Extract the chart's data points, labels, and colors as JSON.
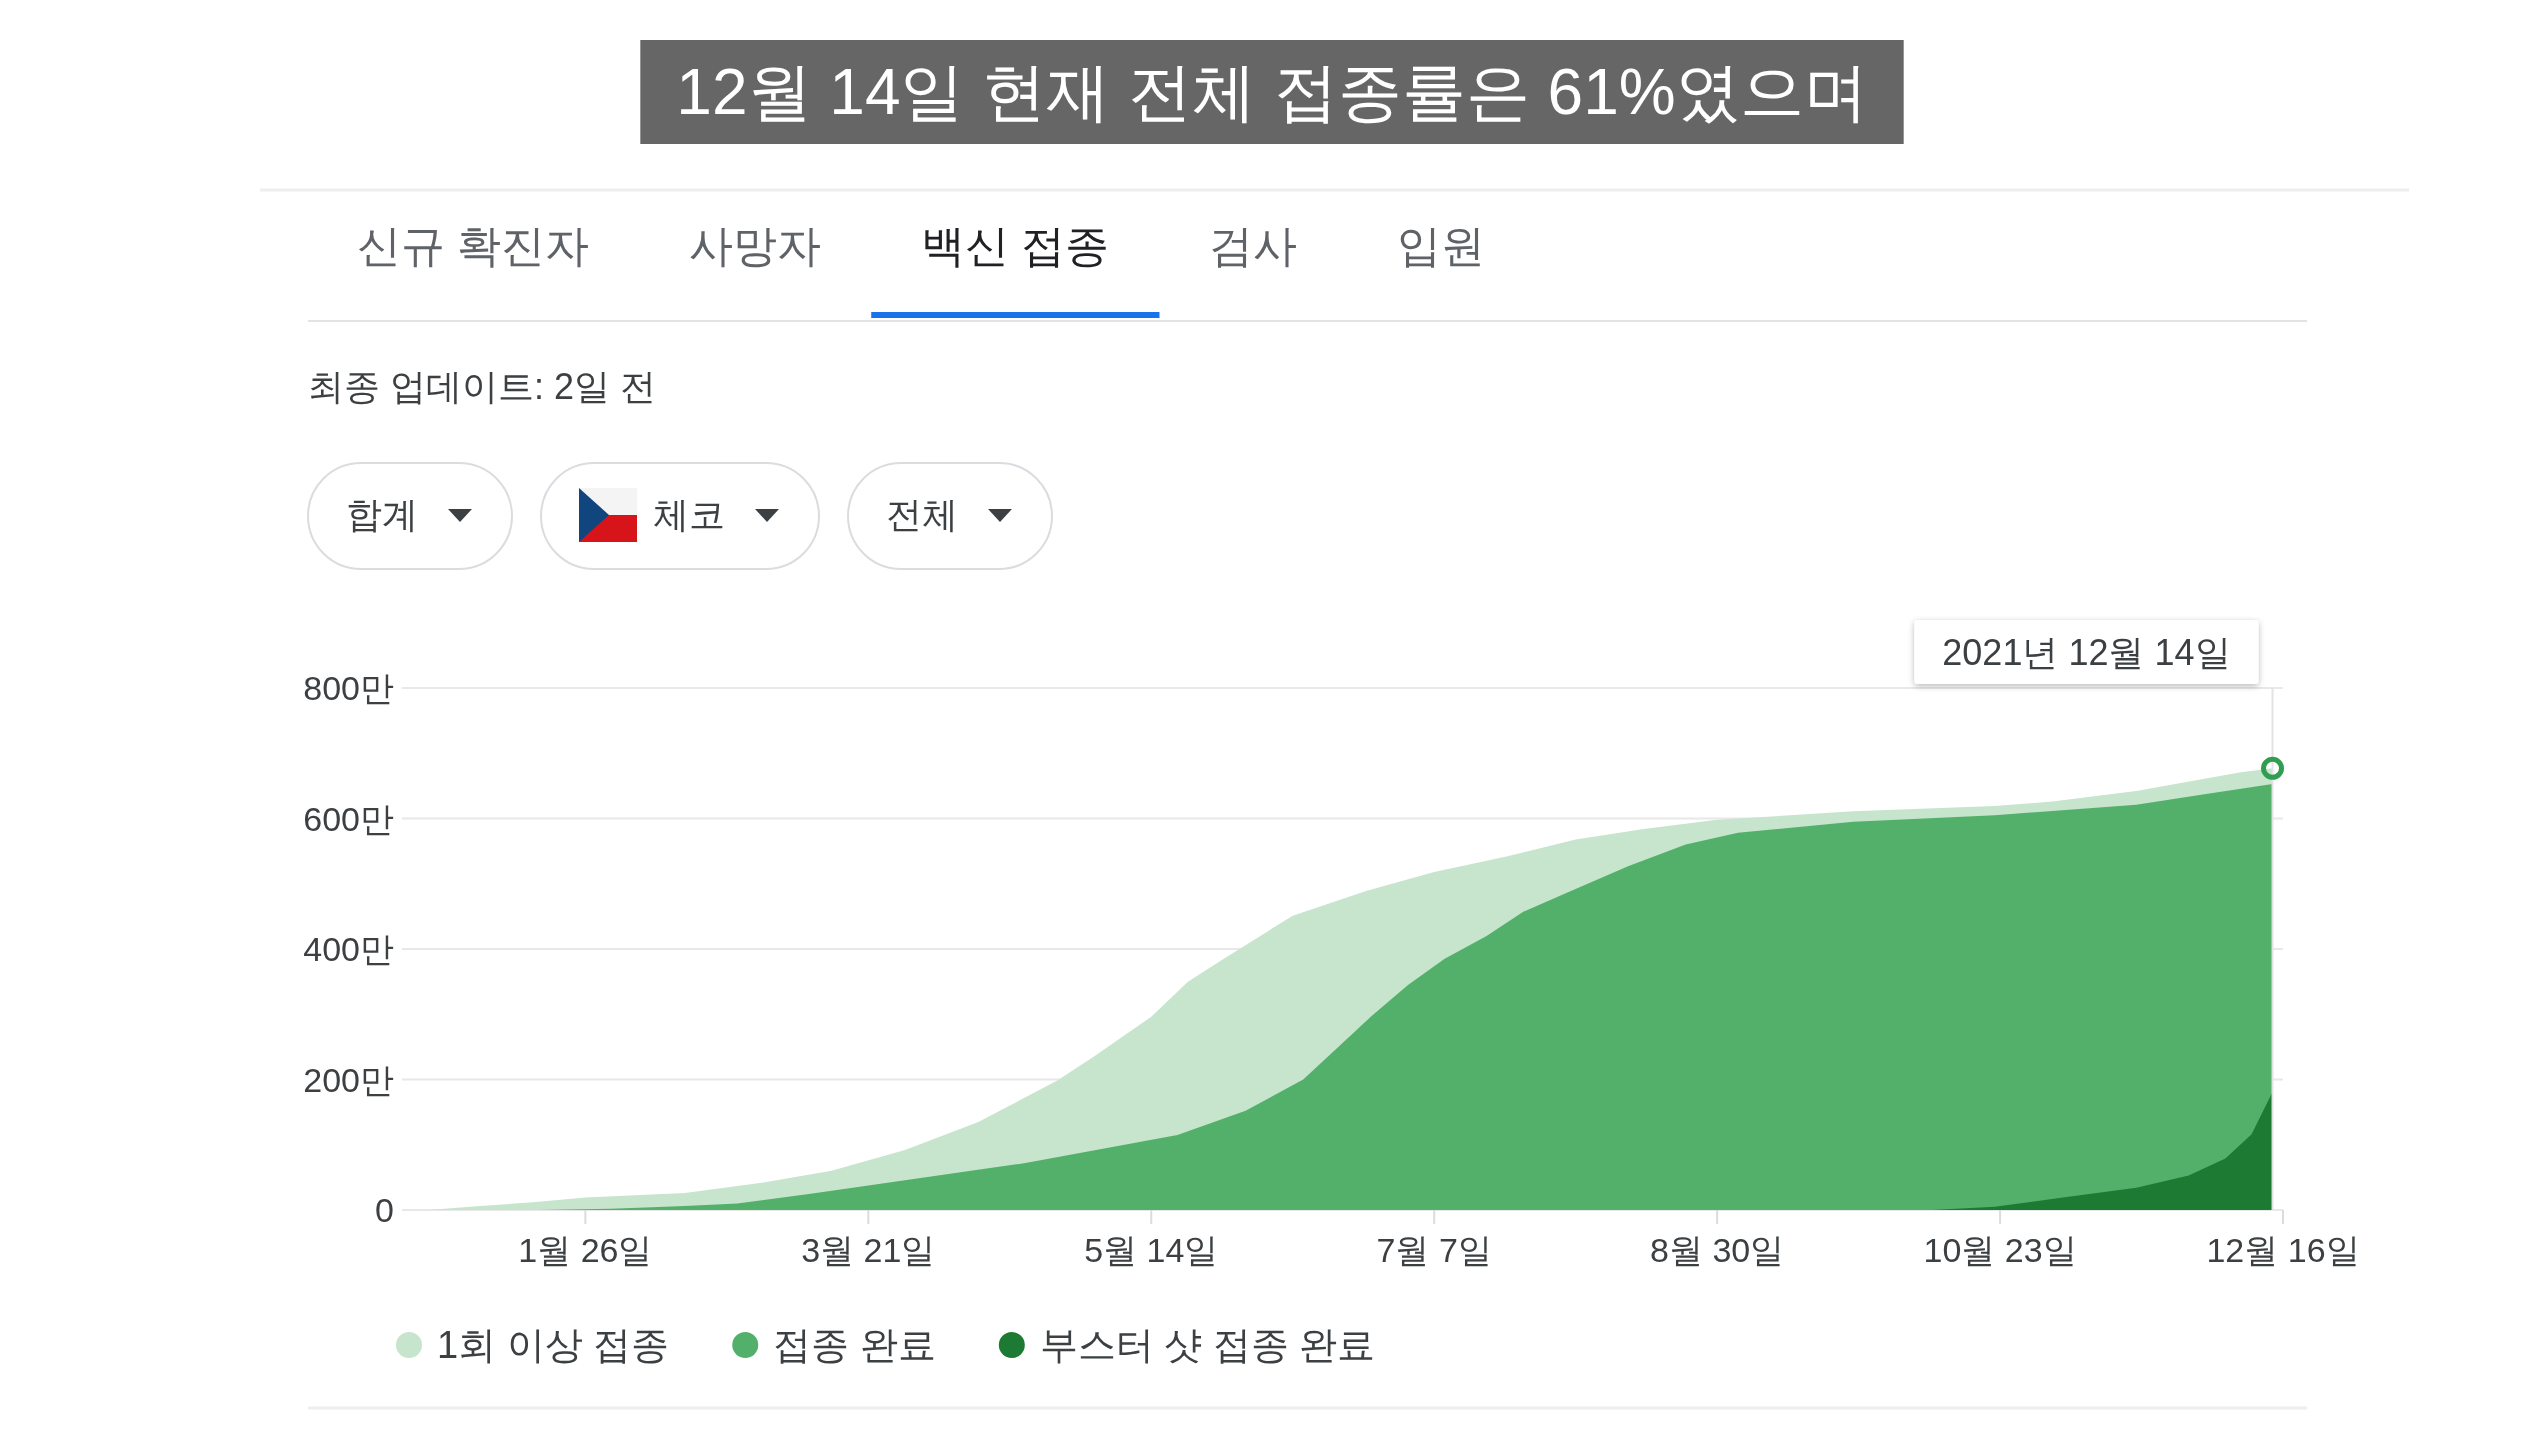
{
  "chart_data": {
    "type": "area",
    "title": "백신 접종",
    "xlim": [
      "2020-12-22",
      "2021-12-16"
    ],
    "xticks": [
      {
        "value": "2021-01-26",
        "label": "1월 26일"
      },
      {
        "value": "2021-03-21",
        "label": "3월 21일"
      },
      {
        "value": "2021-05-14",
        "label": "5월 14일"
      },
      {
        "value": "2021-07-07",
        "label": "7월 7일"
      },
      {
        "value": "2021-08-30",
        "label": "8월 30일"
      },
      {
        "value": "2021-10-23",
        "label": "10월 23일"
      },
      {
        "value": "2021-12-16",
        "label": "12월 16일"
      }
    ],
    "ylim": [
      0,
      800
    ],
    "yticks": [
      0,
      {
        "value": 200,
        "label": "200만"
      },
      {
        "value": 400,
        "label": "400만"
      },
      {
        "value": 600,
        "label": "600만"
      },
      {
        "value": 800,
        "label": "800만"
      }
    ],
    "grid": "y",
    "legend": "bottom",
    "series": [
      {
        "name": "1회 이상 접종",
        "color": "#c6e5cc",
        "x": [
          "2020-12-27",
          "2021-01-06",
          "2021-01-16",
          "2021-01-26",
          "2021-02-14",
          "2021-03-01",
          "2021-03-14",
          "2021-03-28",
          "2021-04-11",
          "2021-04-26",
          "2021-05-03",
          "2021-05-14",
          "2021-05-21",
          "2021-05-28",
          "2021-06-10",
          "2021-06-24",
          "2021-07-07",
          "2021-07-21",
          "2021-08-03",
          "2021-08-16",
          "2021-08-30",
          "2021-09-25",
          "2021-10-22",
          "2021-11-02",
          "2021-11-18",
          "2021-12-01",
          "2021-12-08",
          "2021-12-14"
        ],
        "values": [
          0,
          6,
          12,
          19,
          26,
          42,
          60,
          92,
          135,
          198,
          235,
          296,
          350,
          386,
          451,
          489,
          518,
          542,
          568,
          584,
          598,
          611,
          619,
          626,
          642,
          661,
          671,
          677
        ]
      },
      {
        "name": "접종 완료",
        "color": "#53b06a",
        "x": [
          "2021-01-17",
          "2021-01-31",
          "2021-02-14",
          "2021-02-24",
          "2021-03-10",
          "2021-03-25",
          "2021-04-20",
          "2021-05-19",
          "2021-06-01",
          "2021-06-12",
          "2021-06-19",
          "2021-06-25",
          "2021-07-02",
          "2021-07-09",
          "2021-07-17",
          "2021-07-24",
          "2021-08-01",
          "2021-08-13",
          "2021-08-24",
          "2021-09-03",
          "2021-09-25",
          "2021-10-22",
          "2021-11-18",
          "2021-12-01",
          "2021-12-14"
        ],
        "values": [
          0,
          2,
          6,
          10,
          25,
          42,
          72,
          115,
          152,
          200,
          252,
          297,
          345,
          385,
          420,
          457,
          485,
          527,
          560,
          578,
          595,
          605,
          621,
          637,
          653
        ]
      },
      {
        "name": "부스터 샷 접종 완료",
        "color": "#1c7a33",
        "x": [
          "2021-10-10",
          "2021-10-22",
          "2021-11-04",
          "2021-11-18",
          "2021-11-28",
          "2021-12-05",
          "2021-12-10",
          "2021-12-14"
        ],
        "values": [
          0,
          5,
          19,
          34,
          53,
          79,
          116,
          181
        ]
      }
    ],
    "ref_lines": [
      {
        "axis": "x",
        "value": "2021-12-14",
        "color": "#e3e3e3"
      }
    ],
    "annotations": [
      "신규 확진자",
      "사망자",
      "검사",
      "입원",
      "최종 업데이트: 2일 전",
      "합계",
      "체코",
      "전체",
      {
        "text": "2021년 12월 14일",
        "x": "2021-12-14",
        "y": 677
      },
      "12월 14일 현재 전체 접종률은 61%였으며"
    ]
  }
}
